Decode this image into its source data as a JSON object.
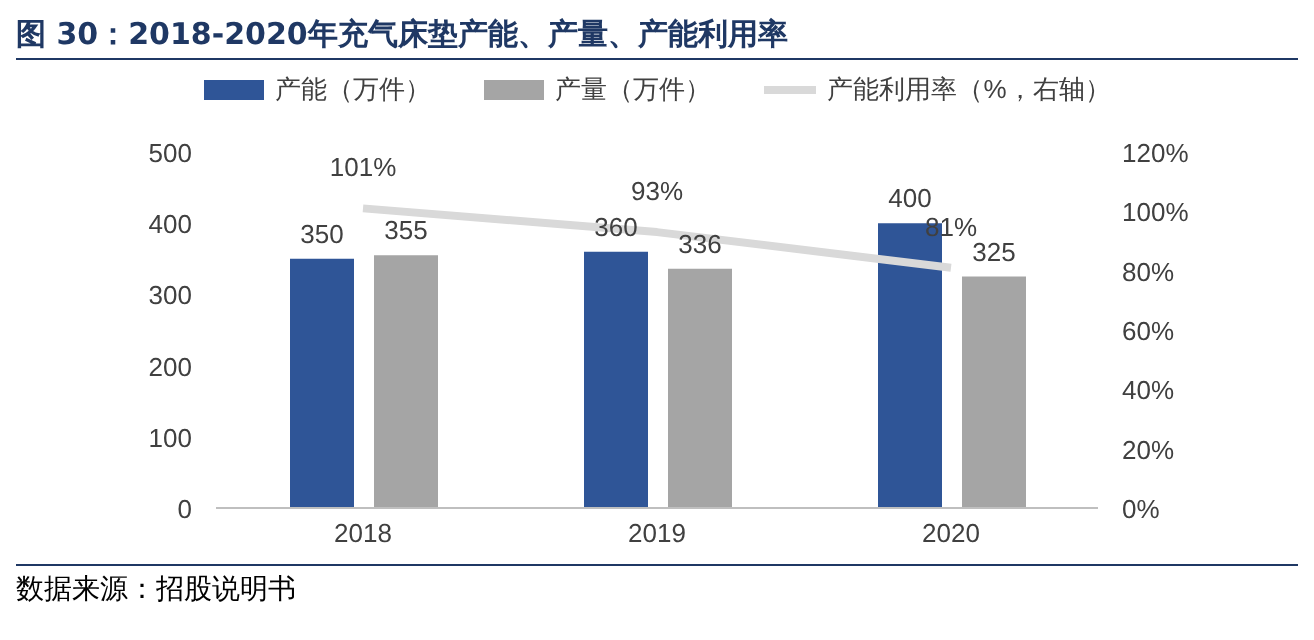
{
  "chart_data": {
    "type": "bar",
    "title": "图 30：2018-2020年充气床垫产能、产量、产能利用率",
    "categories": [
      "2018",
      "2019",
      "2020"
    ],
    "series": [
      {
        "name": "产能（万件）",
        "color": "#2f5597",
        "values": [
          350,
          360,
          400
        ],
        "value_labels": [
          "350",
          "360",
          "400"
        ]
      },
      {
        "name": "产量（万件）",
        "color": "#a5a5a5",
        "values": [
          355,
          336,
          325
        ],
        "value_labels": [
          "355",
          "336",
          "325"
        ]
      },
      {
        "name": "产能利用率（%，右轴）",
        "type": "line",
        "axis": "y2",
        "color": "#d9d9d9",
        "values": [
          101,
          93,
          81
        ],
        "value_labels": [
          "101%",
          "93%",
          "81%"
        ]
      }
    ],
    "ylim": [
      0,
      500
    ],
    "yticks": [
      0,
      100,
      200,
      300,
      400,
      500
    ],
    "y2lim": [
      0,
      120
    ],
    "y2ticks": [
      {
        "value": 0,
        "label": "0%"
      },
      {
        "value": 20,
        "label": "20%"
      },
      {
        "value": 40,
        "label": "40%"
      },
      {
        "value": 60,
        "label": "60%"
      },
      {
        "value": 80,
        "label": "80%"
      },
      {
        "value": 100,
        "label": "100%"
      },
      {
        "value": 120,
        "label": "120%"
      }
    ],
    "legend": "top",
    "marker": "none",
    "line_style": "solid",
    "annotations": [
      "数据来源：招股说明书"
    ]
  }
}
